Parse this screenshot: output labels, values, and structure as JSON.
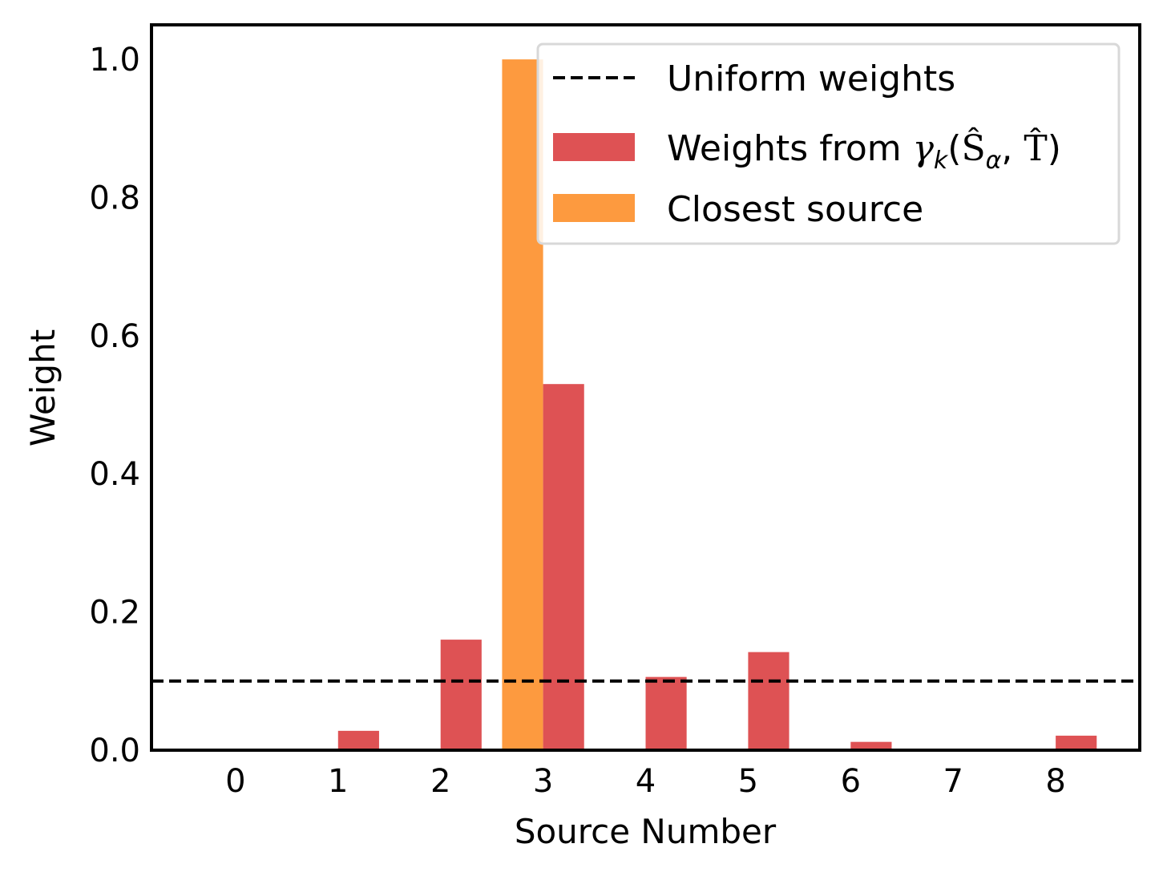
{
  "chart_data": {
    "type": "bar",
    "title": "",
    "xlabel": "Source Number",
    "ylabel": "Weight",
    "categories": [
      "0",
      "1",
      "2",
      "3",
      "4",
      "5",
      "6",
      "7",
      "8"
    ],
    "ylim": [
      0,
      1.05
    ],
    "xlim": [
      -0.82,
      8.82
    ],
    "yticks": [
      "0.0",
      "0.2",
      "0.4",
      "0.6",
      "0.8",
      "1.0"
    ],
    "grid": false,
    "legend_position": "top-right",
    "series": [
      {
        "name": "Closest source",
        "color": "#fd9a3f",
        "offset": -0.2,
        "values": [
          0,
          0,
          0,
          1.0,
          0,
          0,
          0,
          0,
          0
        ]
      },
      {
        "name": "Weights from γk(Ŝα, T̂)",
        "color": "#de5254",
        "offset": 0.2,
        "values": [
          0.0,
          0.028,
          0.16,
          0.53,
          0.106,
          0.142,
          0.012,
          0.0,
          0.021
        ]
      }
    ],
    "reference_line": {
      "name": "Uniform weights",
      "value": 0.1,
      "style": "dashed",
      "color": "#000000"
    },
    "legend": {
      "uniform": "Uniform weights",
      "weights_prefix": "Weights from ",
      "gamma": "γ",
      "k": "k",
      "open": "(",
      "S": "Ŝ",
      "alpha": "α",
      "comma": ", ",
      "T": "T̂",
      "close": ")",
      "closest": "Closest source"
    }
  }
}
